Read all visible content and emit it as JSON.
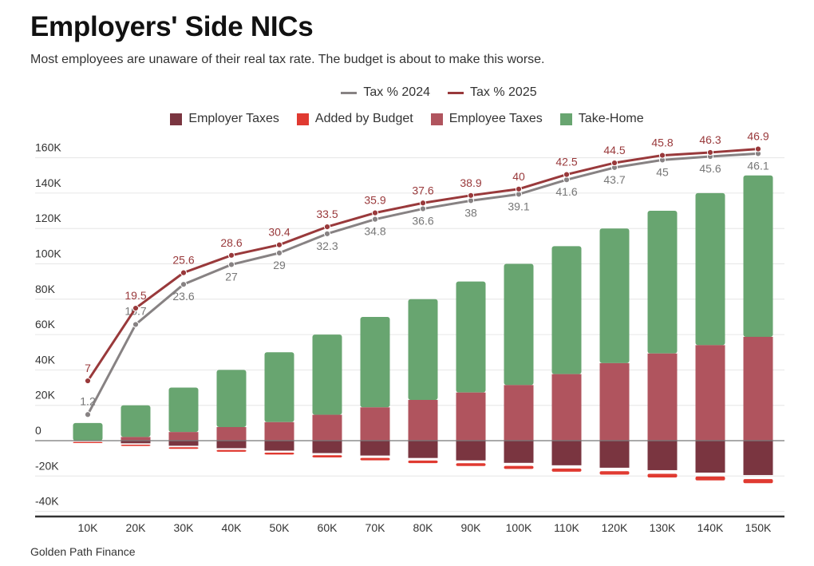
{
  "chart_data": {
    "type": "bar",
    "title": "Employers' Side NICs",
    "subtitle": "Most employees are unaware of their real tax rate. The budget is about to make this worse.",
    "source": "Golden Path Finance",
    "categories": [
      "10K",
      "20K",
      "30K",
      "40K",
      "50K",
      "60K",
      "70K",
      "80K",
      "90K",
      "100K",
      "110K",
      "120K",
      "130K",
      "140K",
      "150K"
    ],
    "ylim": [
      -40000,
      160000
    ],
    "yticks": [
      160000,
      140000,
      120000,
      100000,
      80000,
      60000,
      40000,
      20000,
      0,
      -20000,
      -40000
    ],
    "ytick_labels": [
      "160K",
      "140K",
      "120K",
      "100K",
      "80K",
      "60K",
      "40K",
      "20K",
      "0",
      "-20K",
      "-40K"
    ],
    "grid": true,
    "legend_placement": "top",
    "bar_series": [
      {
        "name": "Employer Taxes",
        "color": "#7a3540",
        "values": [
          -124,
          -1504,
          -2884,
          -4264,
          -5644,
          -7024,
          -8404,
          -9784,
          -11164,
          -12544,
          -13924,
          -15304,
          -16684,
          -18064,
          -19444
        ]
      },
      {
        "name": "Added by Budget",
        "color": "#e03a31",
        "values": [
          -626,
          -746,
          -866,
          -986,
          -1106,
          -1226,
          -1346,
          -1466,
          -1586,
          -1706,
          -1826,
          -1946,
          -2066,
          -2186,
          -2306
        ]
      },
      {
        "name": "Employee Taxes",
        "color": "#b0545e",
        "values": [
          0,
          2080,
          4880,
          7680,
          10480,
          14643,
          18843,
          23043,
          27243,
          31443,
          37643,
          43843,
          49314,
          54014,
          58714
        ]
      },
      {
        "name": "Take-Home",
        "color": "#68a570",
        "values": [
          10000,
          17920,
          25120,
          32320,
          39520,
          45357,
          51157,
          56957,
          62757,
          68557,
          72357,
          76157,
          80686,
          85986,
          91286
        ]
      }
    ],
    "line_series": [
      {
        "name": "Tax % 2024",
        "color": "#878283",
        "label_color": "#777",
        "values": [
          1.2,
          16.7,
          23.6,
          27,
          29,
          32.3,
          34.8,
          36.6,
          38,
          39.1,
          41.6,
          43.7,
          45,
          45.6,
          46.1
        ],
        "labels": [
          "1.2",
          "16.7",
          "23.6",
          "27",
          "29",
          "32.3",
          "34.8",
          "36.6",
          "38",
          "39.1",
          "41.6",
          "43.7",
          "45",
          "45.6",
          "46.1"
        ]
      },
      {
        "name": "Tax % 2025",
        "color": "#99393b",
        "label_color": "#99393b",
        "values": [
          7,
          19.5,
          25.6,
          28.6,
          30.4,
          33.5,
          35.9,
          37.6,
          38.9,
          40,
          42.5,
          44.5,
          45.8,
          46.3,
          46.9
        ],
        "labels": [
          "7",
          "19.5",
          "25.6",
          "28.6",
          "30.4",
          "33.5",
          "35.9",
          "37.6",
          "38.9",
          "40",
          "42.5",
          "44.5",
          "45.8",
          "46.3",
          "46.9"
        ]
      }
    ]
  }
}
